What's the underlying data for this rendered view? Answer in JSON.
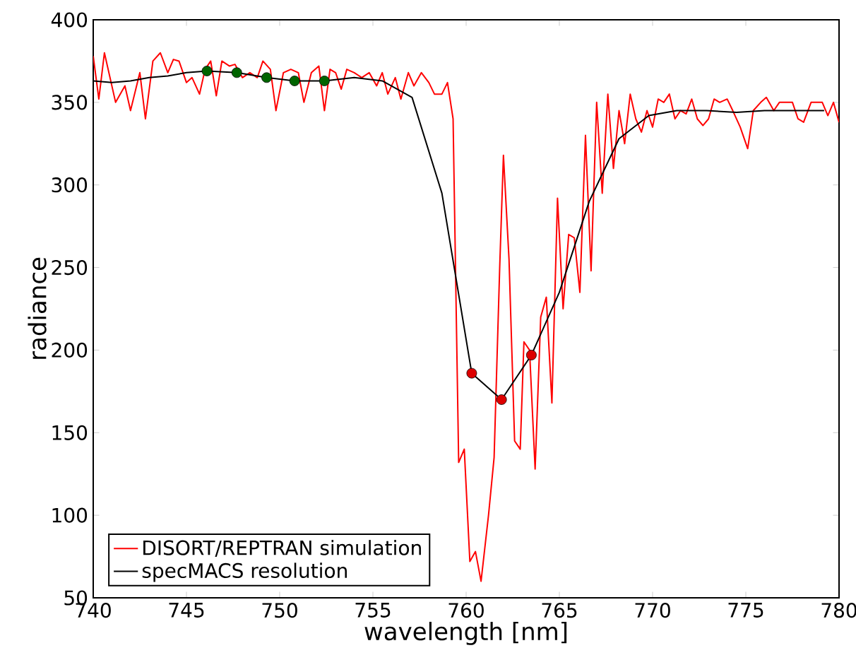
{
  "chart_data": {
    "type": "line",
    "xlabel": "wavelength [nm]",
    "ylabel": "radiance",
    "xlim": [
      740,
      780
    ],
    "ylim": [
      50,
      400
    ],
    "xticks": [
      740,
      745,
      750,
      755,
      760,
      765,
      770,
      775,
      780
    ],
    "yticks": [
      50,
      100,
      150,
      200,
      250,
      300,
      350,
      400
    ],
    "legend": "bottom left",
    "grid": false,
    "series": [
      {
        "name": "DISORT/REPTRAN simulation",
        "color": "#ff0000",
        "marker": "none",
        "x": [
          740,
          740.3,
          740.6,
          741.2,
          741.7,
          742,
          742.5,
          742.8,
          743.2,
          743.6,
          744,
          744.3,
          744.6,
          745,
          745.3,
          745.7,
          746,
          746.3,
          746.6,
          746.9,
          747.3,
          747.6,
          748,
          748.4,
          748.8,
          749.1,
          749.5,
          749.8,
          750.2,
          750.6,
          751,
          751.3,
          751.7,
          752.1,
          752.4,
          752.7,
          753,
          753.3,
          753.6,
          754,
          754.4,
          754.8,
          755.2,
          755.5,
          755.8,
          756.2,
          756.5,
          756.9,
          757.2,
          757.6,
          758,
          758.3,
          758.7,
          759,
          759.3,
          759.6,
          759.9,
          760.2,
          760.5,
          760.8,
          761.2,
          761.5,
          761.8,
          762,
          762.3,
          762.6,
          762.9,
          763.1,
          763.4,
          763.7,
          764,
          764.3,
          764.6,
          764.9,
          765.2,
          765.5,
          765.8,
          766.1,
          766.4,
          766.7,
          767,
          767.3,
          767.6,
          767.9,
          768.2,
          768.5,
          768.8,
          769.1,
          769.4,
          769.7,
          770,
          770.3,
          770.6,
          770.9,
          771.2,
          771.5,
          771.8,
          772.1,
          772.4,
          772.7,
          773,
          773.3,
          773.6,
          774,
          774.3,
          774.7,
          775.1,
          775.4,
          775.8,
          776.1,
          776.5,
          776.8,
          777.2,
          777.5,
          777.8,
          778.1,
          778.5,
          778.8,
          779.1,
          779.4,
          779.7,
          780
        ],
        "values": [
          378,
          352,
          380,
          350,
          360,
          345,
          368,
          340,
          375,
          380,
          368,
          376,
          375,
          362,
          365,
          355,
          370,
          375,
          354,
          375,
          372,
          373,
          365,
          368,
          365,
          375,
          370,
          345,
          368,
          370,
          368,
          350,
          368,
          372,
          345,
          370,
          368,
          358,
          370,
          368,
          365,
          368,
          360,
          368,
          355,
          365,
          352,
          368,
          360,
          368,
          362,
          355,
          355,
          362,
          340,
          132,
          140,
          72,
          78,
          60,
          100,
          135,
          250,
          318,
          255,
          145,
          140,
          205,
          200,
          128,
          220,
          232,
          168,
          292,
          225,
          270,
          268,
          235,
          330,
          248,
          350,
          295,
          355,
          310,
          345,
          325,
          355,
          340,
          332,
          345,
          335,
          352,
          350,
          355,
          340,
          345,
          343,
          352,
          340,
          336,
          340,
          352,
          350,
          352,
          345,
          335,
          322,
          345,
          350,
          353,
          345,
          350,
          350,
          350,
          340,
          338,
          350,
          350,
          350,
          342,
          350,
          338
        ]
      },
      {
        "name": "specMACS resolution",
        "color": "#000000",
        "marker": "none",
        "x": [
          740,
          741,
          742,
          743,
          744,
          745,
          746.1,
          747.7,
          749.3,
          750.8,
          752.4,
          754,
          755.5,
          757.1,
          758.7,
          760.3,
          761.9,
          763.5,
          765,
          766.6,
          768.2,
          769.8,
          771.3,
          772.9,
          774.5,
          776,
          777.6,
          779.2
        ],
        "values": [
          363,
          362,
          363,
          365,
          366,
          368,
          369,
          368,
          365,
          363,
          363,
          365,
          363,
          353,
          295,
          186,
          170,
          197,
          235,
          290,
          328,
          342,
          345,
          345,
          344,
          345,
          345,
          345
        ]
      },
      {
        "type": "scatter",
        "color": "#006400",
        "marker": "circle",
        "x": [
          746.1,
          747.7,
          749.3,
          750.8,
          752.4
        ],
        "values": [
          369,
          368,
          365,
          363,
          363
        ]
      },
      {
        "type": "scatter",
        "color": "#dd0000",
        "marker": "circle",
        "x": [
          760.3,
          761.9,
          763.5
        ],
        "values": [
          186,
          170,
          197
        ]
      }
    ]
  }
}
